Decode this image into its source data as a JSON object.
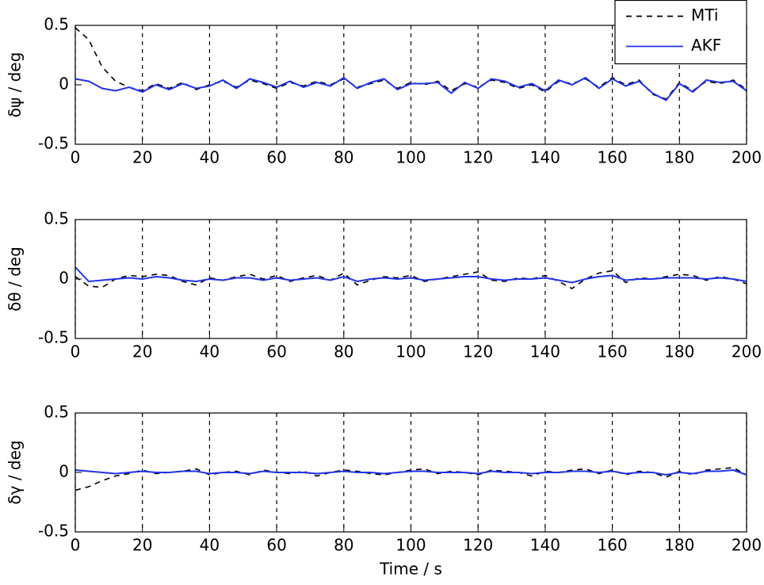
{
  "chart_data": [
    {
      "type": "line",
      "ylabel": "δψ / deg",
      "legend": "upper right",
      "x": [
        0,
        4,
        8,
        12,
        16,
        20,
        24,
        28,
        32,
        36,
        40,
        44,
        48,
        52,
        56,
        60,
        64,
        68,
        72,
        76,
        80,
        84,
        88,
        92,
        96,
        100,
        104,
        108,
        112,
        116,
        120,
        124,
        128,
        132,
        136,
        140,
        144,
        148,
        152,
        156,
        160,
        164,
        168,
        172,
        176,
        180,
        184,
        188,
        192,
        196,
        200
      ],
      "series": [
        {
          "name": "MTi",
          "color": "#000000",
          "style": "dashed",
          "values": [
            0.48,
            0.38,
            0.15,
            0.03,
            -0.02,
            -0.05,
            0.01,
            -0.03,
            0.02,
            -0.04,
            0.0,
            0.03,
            -0.02,
            0.04,
            0.01,
            -0.03,
            0.02,
            -0.01,
            0.03,
            0.0,
            0.05,
            -0.02,
            0.01,
            0.04,
            -0.03,
            0.02,
            0.0,
            0.03,
            -0.05,
            0.01,
            -0.02,
            0.04,
            0.02,
            -0.03,
            0.0,
            -0.06,
            0.03,
            0.01,
            0.05,
            -0.02,
            0.06,
            0.0,
            0.04,
            -0.08,
            -0.12,
            0.02,
            -0.05,
            0.03,
            0.01,
            0.04,
            -0.04
          ]
        },
        {
          "name": "AKF",
          "color": "#2233e6",
          "style": "solid",
          "values": [
            0.05,
            0.03,
            -0.03,
            -0.05,
            -0.02,
            -0.06,
            0.0,
            -0.04,
            0.01,
            -0.03,
            -0.01,
            0.04,
            -0.03,
            0.05,
            0.02,
            -0.02,
            0.03,
            -0.02,
            0.02,
            -0.01,
            0.06,
            -0.03,
            0.02,
            0.05,
            -0.04,
            0.01,
            0.01,
            0.02,
            -0.07,
            0.02,
            -0.03,
            0.05,
            0.03,
            -0.02,
            0.01,
            -0.05,
            0.04,
            0.0,
            0.06,
            -0.03,
            0.05,
            -0.01,
            0.03,
            -0.07,
            -0.13,
            0.01,
            -0.06,
            0.04,
            0.02,
            0.03,
            -0.05
          ]
        }
      ],
      "xlim": [
        0,
        200
      ],
      "xticks": [
        0,
        20,
        40,
        60,
        80,
        100,
        120,
        140,
        160,
        180,
        200
      ],
      "ylim": [
        -0.5,
        0.5
      ],
      "yticks": [
        -0.5,
        0,
        0.5
      ],
      "grid": "x"
    },
    {
      "type": "line",
      "ylabel": "δθ / deg",
      "x": [
        0,
        4,
        8,
        12,
        16,
        20,
        24,
        28,
        32,
        36,
        40,
        44,
        48,
        52,
        56,
        60,
        64,
        68,
        72,
        76,
        80,
        84,
        88,
        92,
        96,
        100,
        104,
        108,
        112,
        116,
        120,
        124,
        128,
        132,
        136,
        140,
        144,
        148,
        152,
        156,
        160,
        164,
        168,
        172,
        176,
        180,
        184,
        188,
        192,
        196,
        200
      ],
      "series": [
        {
          "color": "#000000",
          "style": "dashed",
          "values": [
            0.02,
            -0.06,
            -0.07,
            0.0,
            0.03,
            0.02,
            0.04,
            0.03,
            -0.02,
            -0.05,
            0.01,
            -0.01,
            0.02,
            0.04,
            0.0,
            0.03,
            -0.02,
            0.01,
            0.03,
            -0.01,
            0.05,
            -0.05,
            -0.01,
            0.02,
            0.01,
            0.03,
            -0.02,
            0.0,
            0.02,
            0.04,
            0.06,
            -0.01,
            -0.02,
            0.01,
            0.0,
            0.03,
            -0.02,
            -0.08,
            0.0,
            0.05,
            0.07,
            -0.03,
            0.01,
            0.0,
            0.02,
            0.04,
            0.03,
            -0.01,
            0.02,
            0.0,
            -0.04
          ]
        },
        {
          "color": "#2233e6",
          "style": "solid",
          "values": [
            0.1,
            -0.02,
            -0.01,
            0.0,
            0.01,
            0.0,
            0.02,
            0.01,
            -0.01,
            -0.02,
            0.0,
            -0.01,
            0.01,
            0.01,
            -0.01,
            0.01,
            -0.01,
            0.0,
            0.01,
            -0.01,
            0.02,
            -0.02,
            0.0,
            0.01,
            0.0,
            0.01,
            -0.01,
            0.0,
            0.01,
            0.02,
            0.02,
            0.0,
            -0.01,
            0.0,
            0.0,
            0.01,
            -0.01,
            -0.03,
            0.0,
            0.02,
            0.03,
            -0.01,
            0.0,
            0.0,
            0.01,
            0.01,
            0.01,
            0.0,
            0.01,
            0.0,
            -0.02
          ]
        }
      ],
      "xlim": [
        0,
        200
      ],
      "xticks": [
        0,
        20,
        40,
        60,
        80,
        100,
        120,
        140,
        160,
        180,
        200
      ],
      "ylim": [
        -0.5,
        0.5
      ],
      "yticks": [
        -0.5,
        0,
        0.5
      ],
      "grid": "x"
    },
    {
      "type": "line",
      "ylabel": "δγ / deg",
      "xlabel": "Time / s",
      "x": [
        0,
        4,
        8,
        12,
        16,
        20,
        24,
        28,
        32,
        36,
        40,
        44,
        48,
        52,
        56,
        60,
        64,
        68,
        72,
        76,
        80,
        84,
        88,
        92,
        96,
        100,
        104,
        108,
        112,
        116,
        120,
        124,
        128,
        132,
        136,
        140,
        144,
        148,
        152,
        156,
        160,
        164,
        168,
        172,
        176,
        180,
        184,
        188,
        192,
        196,
        200
      ],
      "series": [
        {
          "color": "#000000",
          "style": "dashed",
          "values": [
            -0.15,
            -0.12,
            -0.07,
            -0.03,
            -0.01,
            0.02,
            -0.01,
            0.0,
            0.01,
            0.03,
            -0.02,
            0.0,
            0.01,
            -0.02,
            0.02,
            0.0,
            -0.01,
            0.01,
            -0.03,
            0.0,
            0.02,
            0.01,
            -0.01,
            -0.02,
            0.0,
            0.02,
            0.03,
            -0.01,
            0.01,
            0.0,
            -0.02,
            0.02,
            0.01,
            0.0,
            -0.03,
            0.01,
            0.0,
            0.02,
            0.03,
            -0.01,
            0.02,
            -0.02,
            0.01,
            0.0,
            -0.04,
            0.01,
            -0.02,
            0.02,
            0.03,
            0.04,
            -0.02
          ]
        },
        {
          "color": "#2233e6",
          "style": "solid",
          "values": [
            0.02,
            0.01,
            0.0,
            -0.01,
            0.0,
            0.01,
            0.0,
            0.0,
            0.01,
            0.01,
            -0.01,
            0.0,
            0.0,
            -0.01,
            0.01,
            0.0,
            0.0,
            0.0,
            -0.01,
            0.0,
            0.01,
            0.0,
            0.0,
            -0.01,
            0.0,
            0.01,
            0.01,
            0.0,
            0.0,
            0.0,
            -0.01,
            0.01,
            0.0,
            0.0,
            -0.01,
            0.0,
            0.0,
            0.01,
            0.01,
            0.0,
            0.01,
            -0.01,
            0.0,
            0.0,
            -0.02,
            0.0,
            -0.01,
            0.01,
            0.01,
            0.02,
            -0.02
          ]
        }
      ],
      "xlim": [
        0,
        200
      ],
      "xticks": [
        0,
        20,
        40,
        60,
        80,
        100,
        120,
        140,
        160,
        180,
        200
      ],
      "ylim": [
        -0.5,
        0.5
      ],
      "yticks": [
        -0.5,
        0,
        0.5
      ],
      "grid": "x"
    }
  ]
}
